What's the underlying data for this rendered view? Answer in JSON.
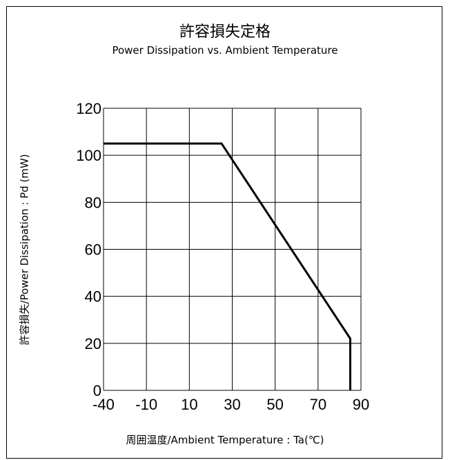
{
  "chart_data": {
    "type": "line",
    "title": "許容損失定格",
    "subtitle": "Power Dissipation vs. Ambient Temperature",
    "xlabel": "周囲温度/Ambient Temperature : Ta(℃)",
    "ylabel": "許容損失/Power Dissipation : Pd (mW)",
    "xlim": [
      -40,
      90
    ],
    "ylim": [
      0,
      120
    ],
    "xticks": [
      -40,
      -10,
      10,
      30,
      50,
      70,
      90
    ],
    "yticks": [
      0,
      20,
      40,
      60,
      80,
      100,
      120
    ],
    "grid": true,
    "series": [
      {
        "x": [
          -40,
          25,
          85,
          85
        ],
        "y": [
          105,
          105,
          22,
          0
        ]
      }
    ],
    "colors": {
      "line": "#000000",
      "grid": "#000000"
    }
  }
}
